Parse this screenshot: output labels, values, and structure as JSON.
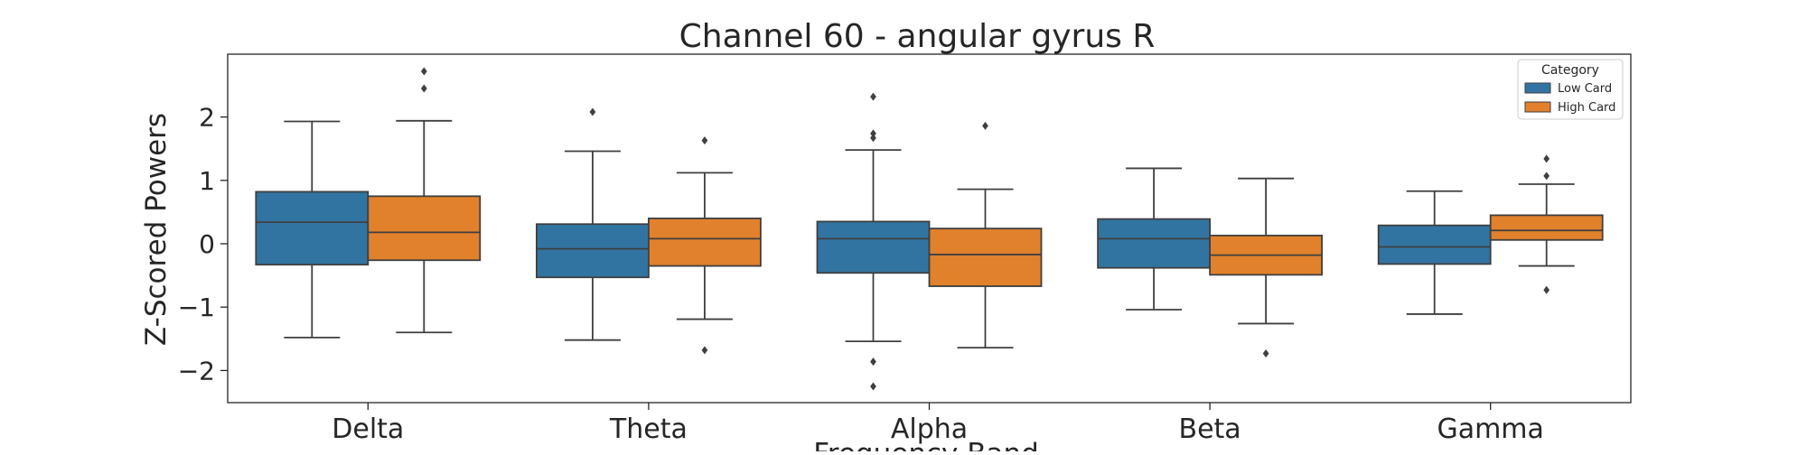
{
  "chart_data": {
    "type": "boxplot",
    "title": "Channel 60 - angular gyrus R",
    "xlabel": "Frequency Band",
    "ylabel": "Z-Scored Powers",
    "ylim": [
      -2.5,
      2.95
    ],
    "yticks": [
      -2,
      -1,
      0,
      1,
      2
    ],
    "ytick_labels": [
      "−2",
      "−1",
      "0",
      "1",
      "2"
    ],
    "categories": [
      "Delta",
      "Theta",
      "Alpha",
      "Beta",
      "Gamma"
    ],
    "legend": {
      "title": "Category",
      "position": "top-right"
    },
    "series": [
      {
        "name": "Low Card",
        "color": "#3274a1",
        "boxes": [
          {
            "whisker_low": -1.48,
            "q1": -0.33,
            "median": 0.34,
            "q3": 0.82,
            "whisker_high": 1.93,
            "outliers": []
          },
          {
            "whisker_low": -1.52,
            "q1": -0.53,
            "median": -0.08,
            "q3": 0.31,
            "whisker_high": 1.46,
            "outliers": [
              2.08
            ]
          },
          {
            "whisker_low": -1.54,
            "q1": -0.46,
            "median": 0.08,
            "q3": 0.35,
            "whisker_high": 1.48,
            "outliers": [
              2.32,
              1.74,
              1.67,
              -1.86,
              -2.25
            ]
          },
          {
            "whisker_low": -1.04,
            "q1": -0.38,
            "median": 0.08,
            "q3": 0.39,
            "whisker_high": 1.19,
            "outliers": []
          },
          {
            "whisker_low": -1.11,
            "q1": -0.32,
            "median": -0.05,
            "q3": 0.29,
            "whisker_high": 0.83,
            "outliers": []
          }
        ]
      },
      {
        "name": "High Card",
        "color": "#e1812c",
        "boxes": [
          {
            "whisker_low": -1.4,
            "q1": -0.26,
            "median": 0.18,
            "q3": 0.75,
            "whisker_high": 1.94,
            "outliers": [
              2.72,
              2.45
            ]
          },
          {
            "whisker_low": -1.19,
            "q1": -0.35,
            "median": 0.08,
            "q3": 0.4,
            "whisker_high": 1.12,
            "outliers": [
              1.63,
              -1.68
            ]
          },
          {
            "whisker_low": -1.64,
            "q1": -0.67,
            "median": -0.17,
            "q3": 0.24,
            "whisker_high": 0.86,
            "outliers": [
              1.86
            ]
          },
          {
            "whisker_low": -1.26,
            "q1": -0.49,
            "median": -0.18,
            "q3": 0.13,
            "whisker_high": 1.03,
            "outliers": [
              -1.73
            ]
          },
          {
            "whisker_low": -0.35,
            "q1": 0.06,
            "median": 0.21,
            "q3": 0.45,
            "whisker_high": 0.94,
            "outliers": [
              1.34,
              1.07,
              -0.73
            ]
          }
        ]
      }
    ]
  }
}
